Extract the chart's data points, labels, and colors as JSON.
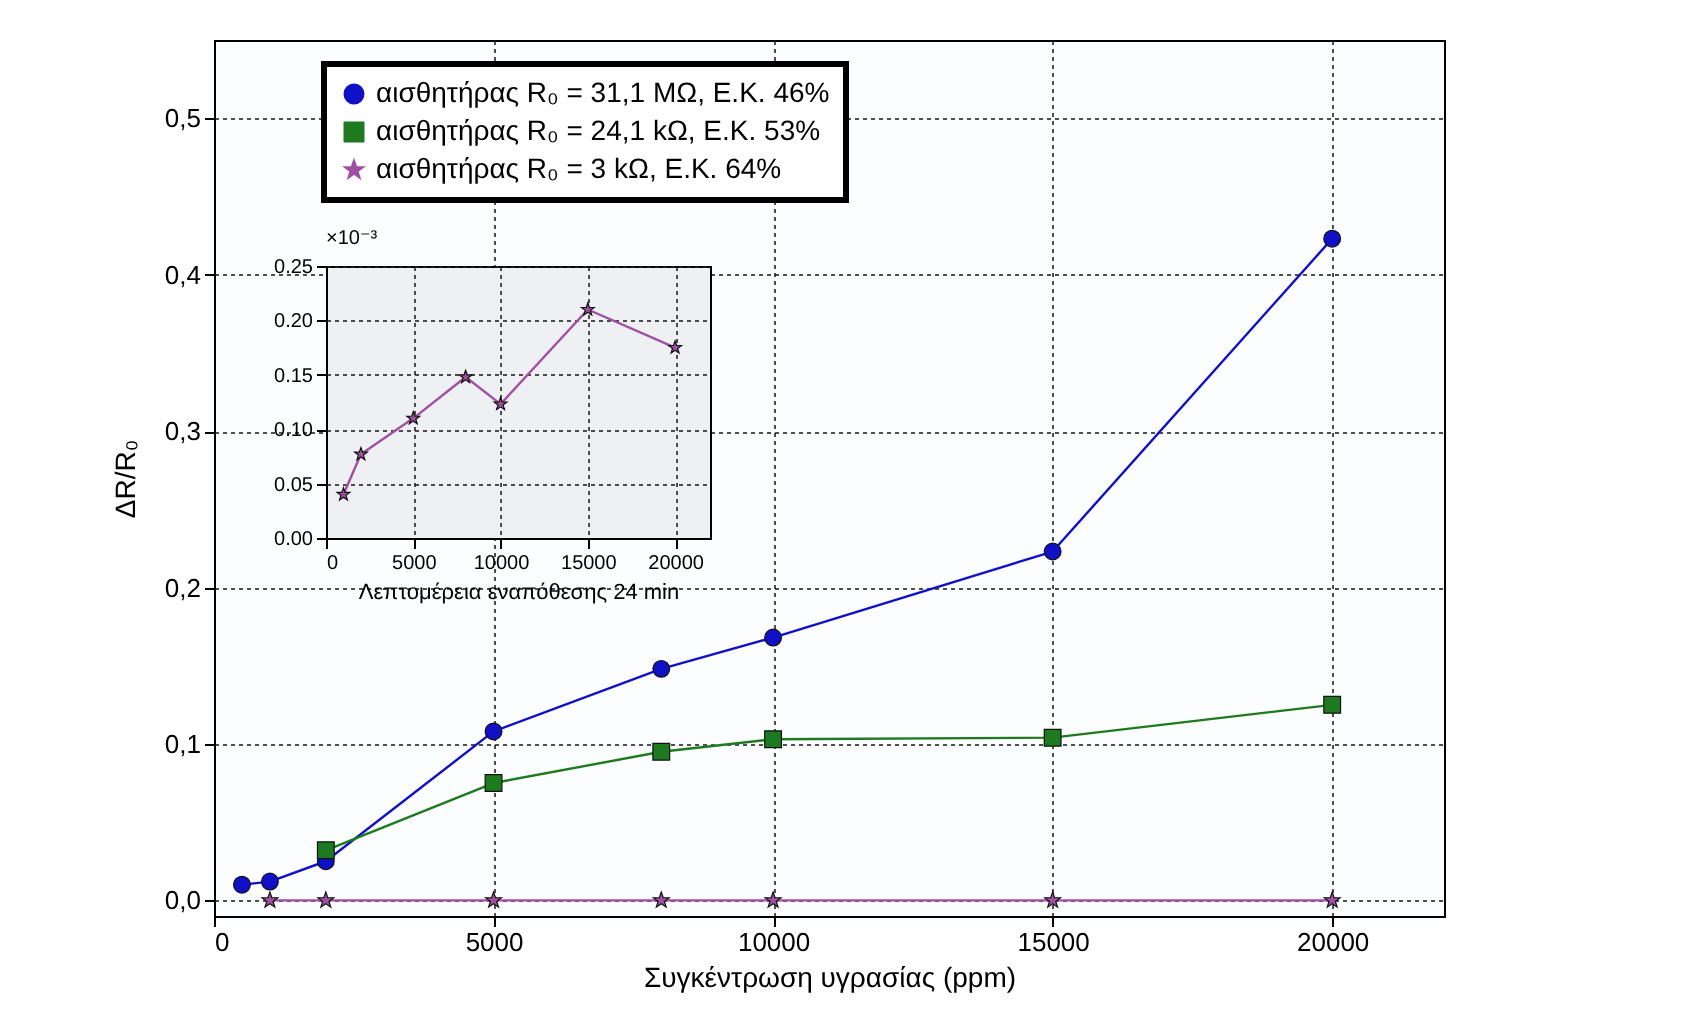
{
  "chart_data": [
    {
      "type": "line",
      "xlabel": "Συγκέντρωση υγρασίας (ppm)",
      "ylabel": "ΔR/R₀",
      "xlim": [
        0,
        22000
      ],
      "xticks": [
        0,
        5000,
        10000,
        15000,
        20000
      ],
      "ylim": [
        -0.01,
        0.55
      ],
      "yticks": [
        {
          "value": 0,
          "label": "0,0"
        },
        {
          "value": 0.1,
          "label": "0,1"
        },
        {
          "value": 0.2,
          "label": "0,2"
        },
        {
          "value": 0.3,
          "label": "0,3"
        },
        {
          "value": 0.4,
          "label": "0,4"
        },
        {
          "value": 0.5,
          "label": "0,5"
        }
      ],
      "grid": true,
      "legend": "top left",
      "series": [
        {
          "name": "αισθητήρας R₀ = 31,1 MΩ, Ε.Κ. 46%",
          "color": "#1010c8",
          "marker": "circle",
          "x": [
            500,
            1000,
            2000,
            5000,
            8000,
            10000,
            15000,
            20000
          ],
          "values": [
            0.01,
            0.012,
            0.025,
            0.108,
            0.148,
            0.168,
            0.223,
            0.423
          ]
        },
        {
          "name": "αισθητήρας R₀ = 24,1 kΩ, Ε.Κ. 53%",
          "color": "#1e7a1e",
          "marker": "square",
          "x": [
            2000,
            5000,
            8000,
            10000,
            15000,
            20000
          ],
          "values": [
            0.032,
            0.075,
            0.095,
            0.103,
            0.104,
            0.125
          ]
        },
        {
          "name": "αισθητήρας R₀ = 3 kΩ, Ε.Κ. 64%",
          "color": "#a050a0",
          "marker": "star",
          "x": [
            1000,
            2000,
            5000,
            8000,
            10000,
            15000,
            20000
          ],
          "values": [
            0,
            0,
            0,
            0,
            0,
            0,
            0
          ]
        }
      ]
    },
    {
      "type": "line",
      "xlabel": "Λεπτομέρεια εναπόθεσης 24 min",
      "annotations": [
        "×10⁻³"
      ],
      "xlim": [
        0,
        22000
      ],
      "xticks": [
        0,
        5000,
        10000,
        15000,
        20000
      ],
      "ylim": [
        0,
        0.25
      ],
      "yticks": [
        {
          "value": 0,
          "label": "0.00"
        },
        {
          "value": 0.05,
          "label": "0.05"
        },
        {
          "value": 0.1,
          "label": "0.10"
        },
        {
          "value": 0.15,
          "label": "0.15"
        },
        {
          "value": 0.2,
          "label": "0.20"
        },
        {
          "value": 0.25,
          "label": "0.25"
        }
      ],
      "grid": true,
      "series": [
        {
          "color": "#a050a0",
          "marker": "star",
          "x": [
            1000,
            2000,
            5000,
            8000,
            10000,
            15000,
            20000
          ],
          "values": [
            0.04,
            0.077,
            0.11,
            0.148,
            0.123,
            0.21,
            0.175
          ]
        }
      ]
    }
  ]
}
